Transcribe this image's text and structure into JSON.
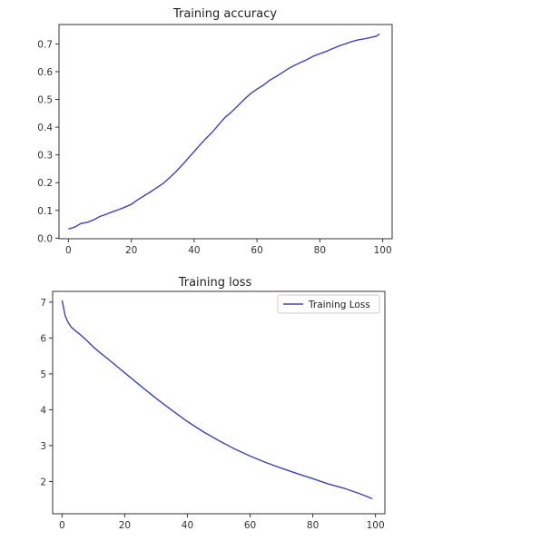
{
  "chart_data": [
    {
      "type": "line",
      "title": "Training accuracy",
      "xlabel": "",
      "ylabel": "",
      "xlim": [
        -3,
        103
      ],
      "ylim": [
        -0.002,
        0.77
      ],
      "xticks": [
        0,
        20,
        40,
        60,
        80,
        100
      ],
      "yticks": [
        0.0,
        0.1,
        0.2,
        0.3,
        0.4,
        0.5,
        0.6,
        0.7
      ],
      "xtick_labels": [
        "0",
        "20",
        "40",
        "60",
        "80",
        "100"
      ],
      "ytick_labels": [
        "0.0",
        "0.1",
        "0.2",
        "0.3",
        "0.4",
        "0.5",
        "0.6",
        "0.7"
      ],
      "grid": false,
      "legend": null,
      "color": "#3b43b8",
      "series": [
        {
          "x": [
            0,
            2,
            4,
            6,
            8,
            10,
            12,
            14,
            16,
            18,
            20,
            22,
            24,
            26,
            28,
            30,
            32,
            34,
            36,
            38,
            40,
            42,
            44,
            46,
            48,
            50,
            52,
            54,
            56,
            58,
            60,
            62,
            64,
            66,
            68,
            70,
            72,
            74,
            76,
            78,
            80,
            82,
            84,
            86,
            88,
            90,
            92,
            94,
            96,
            98,
            99
          ],
          "y": [
            0.033,
            0.04,
            0.053,
            0.057,
            0.066,
            0.078,
            0.086,
            0.095,
            0.103,
            0.112,
            0.122,
            0.138,
            0.152,
            0.166,
            0.181,
            0.196,
            0.216,
            0.237,
            0.261,
            0.287,
            0.312,
            0.338,
            0.362,
            0.385,
            0.412,
            0.437,
            0.456,
            0.478,
            0.501,
            0.521,
            0.537,
            0.551,
            0.569,
            0.582,
            0.596,
            0.611,
            0.623,
            0.634,
            0.644,
            0.656,
            0.665,
            0.673,
            0.683,
            0.692,
            0.7,
            0.708,
            0.714,
            0.718,
            0.723,
            0.728,
            0.736
          ]
        }
      ]
    },
    {
      "type": "line",
      "title": "Training loss",
      "xlabel": "",
      "ylabel": "",
      "xlim": [
        -3,
        103
      ],
      "ylim": [
        1.1,
        7.3
      ],
      "xticks": [
        0,
        20,
        40,
        60,
        80,
        100
      ],
      "yticks": [
        2,
        3,
        4,
        5,
        6,
        7
      ],
      "xtick_labels": [
        "0",
        "20",
        "40",
        "60",
        "80",
        "100"
      ],
      "ytick_labels": [
        "2",
        "3",
        "4",
        "5",
        "6",
        "7"
      ],
      "grid": false,
      "legend": "top-right",
      "color": "#3b43b8",
      "series": [
        {
          "name": "Training Loss",
          "x": [
            0,
            1,
            2,
            3,
            4,
            6,
            8,
            10,
            12,
            15,
            20,
            25,
            30,
            35,
            40,
            45,
            50,
            55,
            60,
            65,
            70,
            75,
            80,
            85,
            90,
            95,
            99
          ],
          "y": [
            7.05,
            6.62,
            6.42,
            6.3,
            6.22,
            6.08,
            5.92,
            5.75,
            5.6,
            5.39,
            5.03,
            4.67,
            4.32,
            3.99,
            3.67,
            3.39,
            3.14,
            2.91,
            2.71,
            2.53,
            2.37,
            2.22,
            2.08,
            1.93,
            1.81,
            1.66,
            1.52
          ]
        }
      ]
    }
  ]
}
